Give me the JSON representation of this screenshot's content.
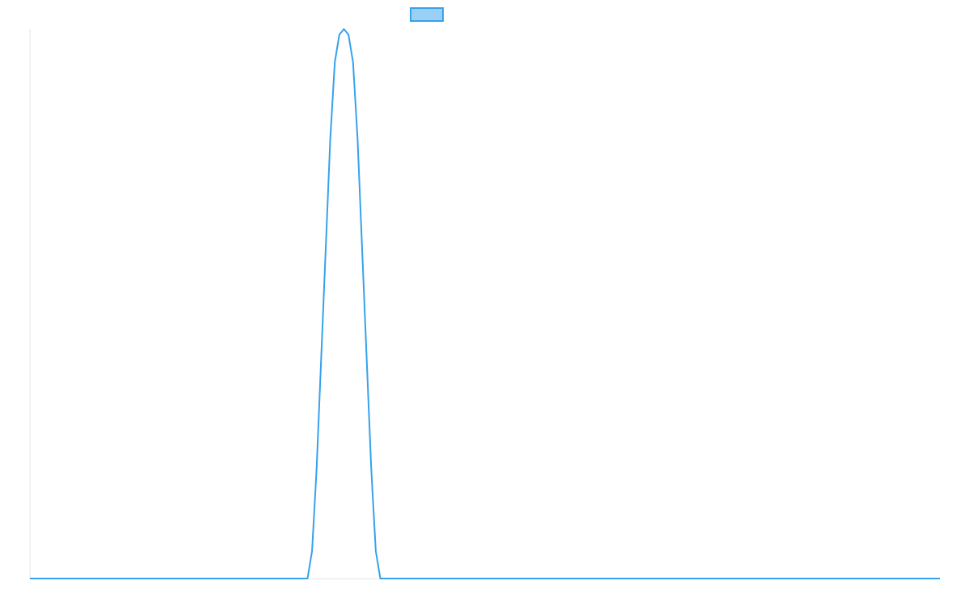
{
  "chart_data": {
    "type": "line",
    "title": "",
    "xlabel": "",
    "ylabel": "",
    "x": [
      0,
      30.5,
      31,
      31.5,
      32,
      32.5,
      33,
      33.5,
      34,
      34.5,
      35,
      35.5,
      36,
      36.5,
      37,
      37.5,
      38,
      38.5,
      39,
      100
    ],
    "series": [
      {
        "values": [
          0,
          0,
          0.05,
          0.2,
          0.4,
          0.6,
          0.8,
          0.94,
          0.99,
          1.0,
          0.99,
          0.94,
          0.8,
          0.6,
          0.4,
          0.2,
          0.05,
          0,
          0,
          0
        ],
        "color": "#36a2eb",
        "fill": "#9ad0f5"
      }
    ],
    "xlim": [
      0,
      100
    ],
    "ylim": [
      0,
      1
    ],
    "grid": false,
    "legend": "top-center"
  }
}
